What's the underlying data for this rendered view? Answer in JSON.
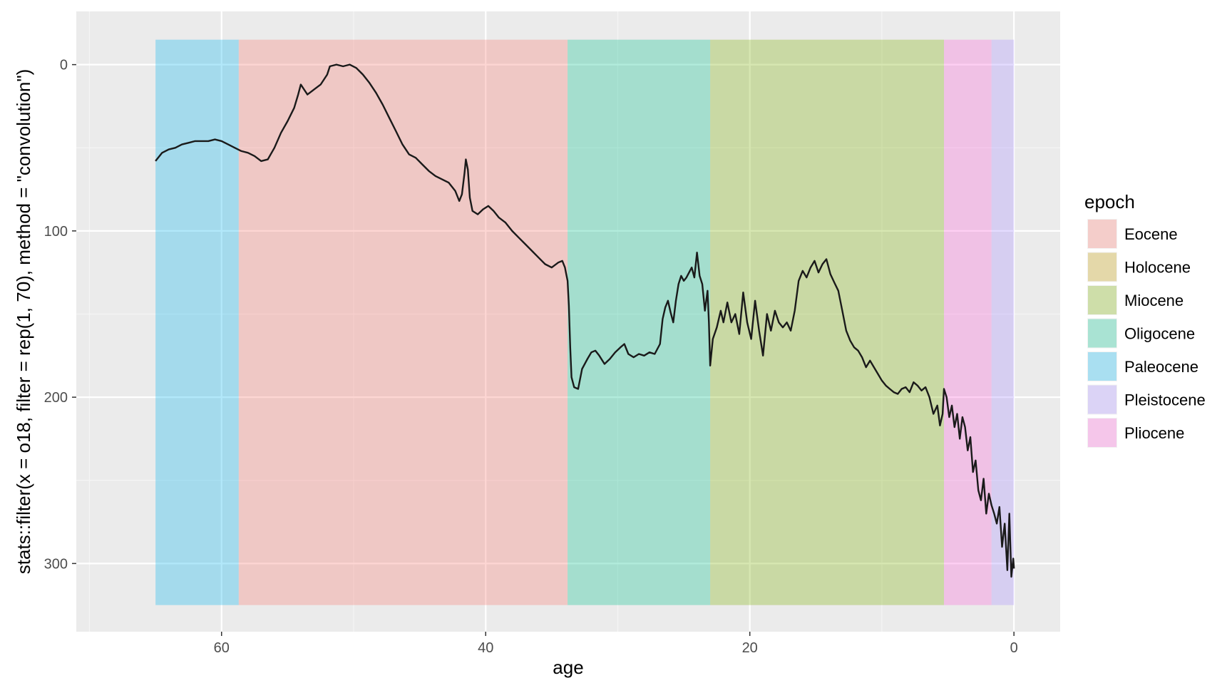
{
  "chart_data": {
    "type": "line",
    "xlabel": "age",
    "ylabel": "stats::filter(x = o18, filter = rep(1, 70), method = \"convolution\")",
    "x_reversed": true,
    "y_reversed": true,
    "xlim": [
      71,
      -3.5
    ],
    "ylim": [
      -32,
      341
    ],
    "x_ticks": [
      60,
      40,
      20,
      0
    ],
    "y_ticks": [
      0,
      100,
      200,
      300
    ],
    "grid": true,
    "legend": {
      "title": "epoch",
      "placement": "right",
      "entries": [
        {
          "label": "Eocene",
          "color": "#f8766d"
        },
        {
          "label": "Holocene",
          "color": "#c49a00"
        },
        {
          "label": "Miocene",
          "color": "#7cae00"
        },
        {
          "label": "Oligocene",
          "color": "#00c08b"
        },
        {
          "label": "Paleocene",
          "color": "#00b4ef"
        },
        {
          "label": "Pleistocene",
          "color": "#a58aff"
        },
        {
          "label": "Pliocene",
          "color": "#fb61d7"
        }
      ]
    },
    "epoch_bands": [
      {
        "epoch": "Paleocene",
        "from": 65.0,
        "to": 58.7,
        "color": "#00b4ef"
      },
      {
        "epoch": "Eocene",
        "from": 58.7,
        "to": 33.8,
        "color": "#f8766d"
      },
      {
        "epoch": "Oligocene",
        "from": 33.8,
        "to": 23.0,
        "color": "#00c08b"
      },
      {
        "epoch": "Miocene",
        "from": 23.0,
        "to": 5.3,
        "color": "#7cae00"
      },
      {
        "epoch": "Pliocene",
        "from": 5.3,
        "to": 1.7,
        "color": "#fb61d7"
      },
      {
        "epoch": "Pleistocene",
        "from": 1.7,
        "to": 0.0,
        "color": "#a58aff"
      }
    ],
    "band_y_range": [
      -15,
      325
    ],
    "series": [
      {
        "color": "#1a1a1a",
        "points": [
          [
            65.0,
            58
          ],
          [
            64.5,
            53
          ],
          [
            64.0,
            51
          ],
          [
            63.5,
            50
          ],
          [
            63.0,
            48
          ],
          [
            62.5,
            47
          ],
          [
            62.0,
            46
          ],
          [
            61.5,
            46
          ],
          [
            61.0,
            46
          ],
          [
            60.5,
            45
          ],
          [
            60.0,
            46
          ],
          [
            59.5,
            48
          ],
          [
            59.0,
            50
          ],
          [
            58.5,
            52
          ],
          [
            58.0,
            53
          ],
          [
            57.5,
            55
          ],
          [
            57.0,
            58
          ],
          [
            56.5,
            57
          ],
          [
            56.0,
            50
          ],
          [
            55.5,
            41
          ],
          [
            55.0,
            34
          ],
          [
            54.5,
            26
          ],
          [
            54.2,
            18
          ],
          [
            54.0,
            12
          ],
          [
            53.5,
            18
          ],
          [
            53.0,
            15
          ],
          [
            52.5,
            12
          ],
          [
            52.0,
            6
          ],
          [
            51.8,
            1
          ],
          [
            51.3,
            0
          ],
          [
            50.8,
            1
          ],
          [
            50.3,
            0
          ],
          [
            49.8,
            2
          ],
          [
            49.3,
            6
          ],
          [
            48.8,
            11
          ],
          [
            48.3,
            17
          ],
          [
            47.8,
            24
          ],
          [
            47.3,
            32
          ],
          [
            46.8,
            40
          ],
          [
            46.3,
            48
          ],
          [
            45.8,
            54
          ],
          [
            45.3,
            56
          ],
          [
            44.8,
            60
          ],
          [
            44.3,
            64
          ],
          [
            43.8,
            67
          ],
          [
            43.3,
            69
          ],
          [
            42.8,
            71
          ],
          [
            42.3,
            76
          ],
          [
            42.0,
            82
          ],
          [
            41.8,
            78
          ],
          [
            41.6,
            65
          ],
          [
            41.5,
            57
          ],
          [
            41.35,
            63
          ],
          [
            41.2,
            80
          ],
          [
            41.0,
            88
          ],
          [
            40.6,
            90
          ],
          [
            40.2,
            87
          ],
          [
            39.8,
            85
          ],
          [
            39.4,
            88
          ],
          [
            39.0,
            92
          ],
          [
            38.5,
            95
          ],
          [
            38.0,
            100
          ],
          [
            37.5,
            104
          ],
          [
            37.0,
            108
          ],
          [
            36.5,
            112
          ],
          [
            36.0,
            116
          ],
          [
            35.5,
            120
          ],
          [
            35.0,
            122
          ],
          [
            34.5,
            119
          ],
          [
            34.2,
            118
          ],
          [
            34.0,
            122
          ],
          [
            33.9,
            126
          ],
          [
            33.8,
            130
          ],
          [
            33.7,
            145
          ],
          [
            33.6,
            170
          ],
          [
            33.5,
            188
          ],
          [
            33.3,
            194
          ],
          [
            33.0,
            195
          ],
          [
            32.7,
            183
          ],
          [
            32.3,
            177
          ],
          [
            32.0,
            173
          ],
          [
            31.7,
            172
          ],
          [
            31.4,
            175
          ],
          [
            31.0,
            180
          ],
          [
            30.6,
            177
          ],
          [
            30.2,
            173
          ],
          [
            29.8,
            170
          ],
          [
            29.5,
            168
          ],
          [
            29.2,
            174
          ],
          [
            28.8,
            176
          ],
          [
            28.4,
            174
          ],
          [
            28.0,
            175
          ],
          [
            27.6,
            173
          ],
          [
            27.2,
            174
          ],
          [
            26.8,
            168
          ],
          [
            26.6,
            153
          ],
          [
            26.4,
            146
          ],
          [
            26.2,
            142
          ],
          [
            26.0,
            149
          ],
          [
            25.8,
            155
          ],
          [
            25.6,
            142
          ],
          [
            25.4,
            132
          ],
          [
            25.2,
            127
          ],
          [
            25.0,
            130
          ],
          [
            24.8,
            128
          ],
          [
            24.6,
            125
          ],
          [
            24.4,
            122
          ],
          [
            24.2,
            128
          ],
          [
            24.0,
            113
          ],
          [
            23.8,
            127
          ],
          [
            23.6,
            132
          ],
          [
            23.4,
            148
          ],
          [
            23.2,
            136
          ],
          [
            23.1,
            155
          ],
          [
            23.0,
            181
          ],
          [
            22.8,
            165
          ],
          [
            22.5,
            158
          ],
          [
            22.2,
            148
          ],
          [
            22.0,
            155
          ],
          [
            21.7,
            143
          ],
          [
            21.4,
            155
          ],
          [
            21.1,
            150
          ],
          [
            20.8,
            162
          ],
          [
            20.5,
            137
          ],
          [
            20.2,
            155
          ],
          [
            19.9,
            165
          ],
          [
            19.6,
            142
          ],
          [
            19.3,
            160
          ],
          [
            19.0,
            175
          ],
          [
            18.7,
            150
          ],
          [
            18.4,
            160
          ],
          [
            18.1,
            148
          ],
          [
            17.8,
            155
          ],
          [
            17.5,
            158
          ],
          [
            17.2,
            155
          ],
          [
            16.9,
            160
          ],
          [
            16.6,
            148
          ],
          [
            16.3,
            130
          ],
          [
            16.0,
            124
          ],
          [
            15.7,
            128
          ],
          [
            15.4,
            122
          ],
          [
            15.1,
            118
          ],
          [
            14.8,
            125
          ],
          [
            14.5,
            120
          ],
          [
            14.2,
            117
          ],
          [
            13.9,
            126
          ],
          [
            13.6,
            131
          ],
          [
            13.3,
            136
          ],
          [
            13.0,
            148
          ],
          [
            12.7,
            160
          ],
          [
            12.4,
            166
          ],
          [
            12.1,
            170
          ],
          [
            11.8,
            172
          ],
          [
            11.5,
            176
          ],
          [
            11.2,
            182
          ],
          [
            10.9,
            178
          ],
          [
            10.6,
            182
          ],
          [
            10.3,
            186
          ],
          [
            10.0,
            190
          ],
          [
            9.7,
            193
          ],
          [
            9.4,
            195
          ],
          [
            9.1,
            197
          ],
          [
            8.8,
            198
          ],
          [
            8.5,
            195
          ],
          [
            8.2,
            194
          ],
          [
            7.9,
            197
          ],
          [
            7.6,
            191
          ],
          [
            7.3,
            193
          ],
          [
            7.0,
            196
          ],
          [
            6.7,
            194
          ],
          [
            6.4,
            200
          ],
          [
            6.1,
            210
          ],
          [
            5.8,
            205
          ],
          [
            5.6,
            217
          ],
          [
            5.4,
            210
          ],
          [
            5.3,
            195
          ],
          [
            5.1,
            200
          ],
          [
            4.9,
            212
          ],
          [
            4.7,
            205
          ],
          [
            4.5,
            218
          ],
          [
            4.3,
            210
          ],
          [
            4.1,
            225
          ],
          [
            3.9,
            212
          ],
          [
            3.7,
            218
          ],
          [
            3.5,
            232
          ],
          [
            3.3,
            224
          ],
          [
            3.1,
            245
          ],
          [
            2.9,
            238
          ],
          [
            2.7,
            256
          ],
          [
            2.5,
            262
          ],
          [
            2.3,
            249
          ],
          [
            2.1,
            270
          ],
          [
            1.9,
            258
          ],
          [
            1.7,
            265
          ],
          [
            1.5,
            270
          ],
          [
            1.3,
            276
          ],
          [
            1.1,
            266
          ],
          [
            0.9,
            290
          ],
          [
            0.7,
            276
          ],
          [
            0.5,
            304
          ],
          [
            0.35,
            270
          ],
          [
            0.2,
            308
          ],
          [
            0.05,
            297
          ],
          [
            0.0,
            303
          ]
        ]
      }
    ]
  }
}
